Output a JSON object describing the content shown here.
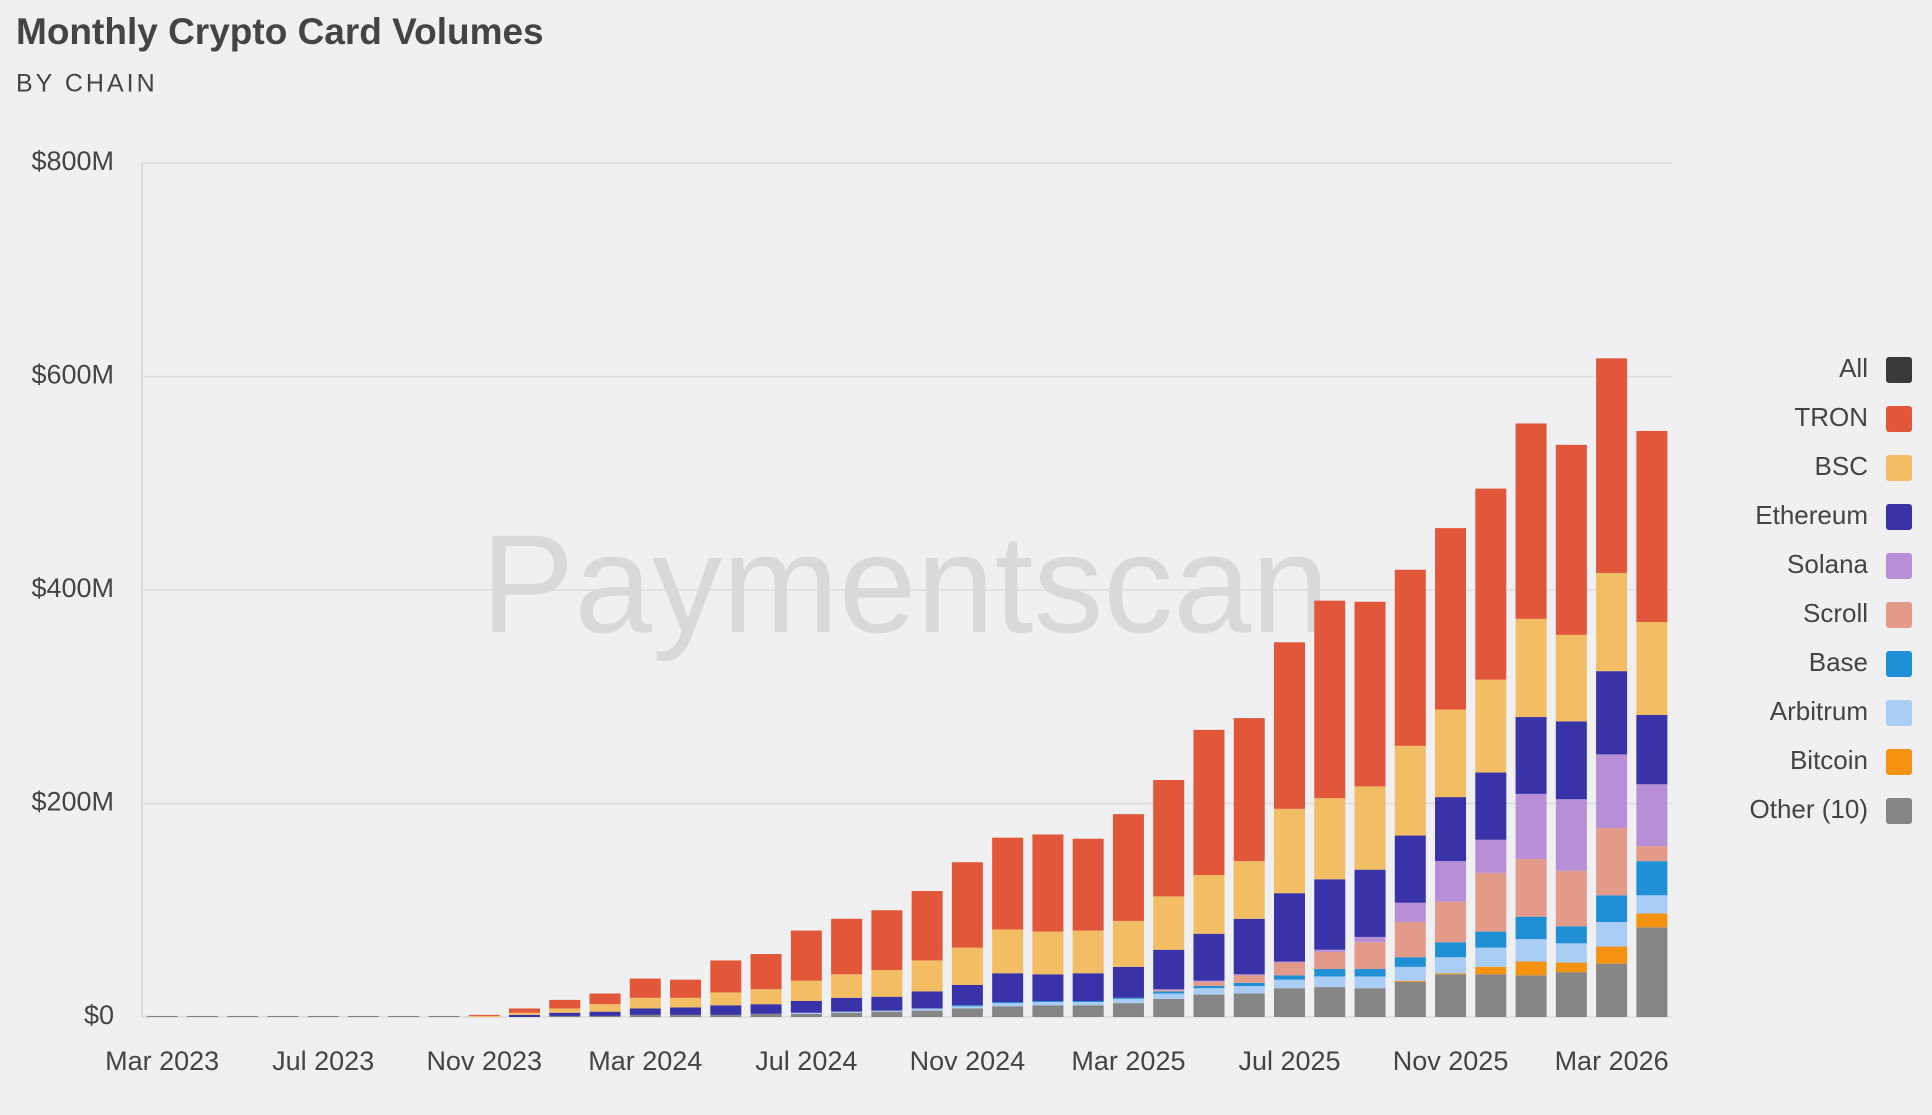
{
  "chart_data": {
    "type": "stacked_bar",
    "title": "Monthly Crypto Card Volumes",
    "subtitle": "BY CHAIN",
    "watermark": "Paymentscan",
    "categories": [
      "Mar 2023",
      null,
      null,
      null,
      "Jul 2023",
      null,
      null,
      null,
      "Nov 2023",
      null,
      null,
      null,
      "Mar 2024",
      null,
      null,
      null,
      "Jul 2024",
      null,
      null,
      null,
      "Nov 2024",
      null,
      null,
      null,
      "Mar 2025",
      null,
      null,
      null,
      "Jul 2025",
      null,
      null,
      null,
      "Nov 2025",
      null,
      null,
      null,
      "Mar 2026",
      null
    ],
    "legend_all": {
      "name": "All",
      "color": "#3a3a3a"
    },
    "series": [
      {
        "name": "TRON",
        "color": "#e2573a",
        "values": [
          0,
          0,
          0,
          0,
          0,
          0,
          0,
          0,
          1,
          4,
          8,
          10,
          18,
          17,
          30,
          33,
          47,
          52,
          56,
          65,
          80,
          86,
          91,
          86,
          100,
          109,
          136,
          134,
          156,
          185,
          173,
          165,
          170,
          179,
          183,
          178,
          201,
          179
        ]
      },
      {
        "name": "BSC",
        "color": "#f2bd63",
        "values": [
          0,
          0,
          0,
          0,
          0,
          0,
          0,
          0,
          1,
          2,
          4,
          7,
          10,
          9,
          12,
          14,
          19,
          22,
          25,
          29,
          35,
          41,
          40,
          40,
          43,
          50,
          55,
          54,
          79,
          76,
          78,
          84,
          82,
          87,
          92,
          81,
          92,
          87
        ]
      },
      {
        "name": "Ethereum",
        "color": "#3833a9",
        "values": [
          0,
          0,
          0,
          0,
          0,
          0,
          0,
          0,
          0,
          2,
          3,
          4,
          6,
          7,
          9,
          9,
          11,
          13,
          13,
          16,
          19,
          27,
          25,
          26,
          29,
          37,
          44,
          52,
          64,
          66,
          63,
          63,
          60,
          63,
          72,
          73,
          78,
          65
        ]
      },
      {
        "name": "Solana",
        "color": "#b88fd6",
        "values": [
          0,
          0,
          0,
          0,
          0,
          0,
          0,
          0,
          0,
          0,
          0,
          0,
          0,
          0,
          0,
          0,
          0,
          0,
          0,
          0,
          0,
          0,
          0,
          0,
          0,
          1,
          1,
          1,
          1,
          2,
          5,
          18,
          38,
          31,
          61,
          67,
          69,
          58
        ]
      },
      {
        "name": "Scroll",
        "color": "#e39a88",
        "values": [
          0,
          0,
          0,
          0,
          0,
          0,
          0,
          0,
          0,
          0,
          0,
          0,
          0,
          0,
          0,
          0,
          0,
          0,
          0,
          0,
          0,
          0,
          0,
          0,
          0,
          1,
          4,
          7,
          12,
          16,
          25,
          33,
          38,
          55,
          54,
          52,
          63,
          14
        ]
      },
      {
        "name": "Base",
        "color": "#1f8fd6",
        "values": [
          0,
          0,
          0,
          0,
          0,
          0,
          0,
          0,
          0,
          0,
          0,
          0,
          0,
          0,
          0,
          0,
          0,
          0,
          0,
          0,
          1,
          1,
          1,
          1,
          1,
          2,
          2,
          3,
          4,
          7,
          7,
          9,
          14,
          15,
          21,
          16,
          25,
          32
        ]
      },
      {
        "name": "Arbitrum",
        "color": "#a9cdf5",
        "values": [
          0,
          0,
          0,
          0,
          0,
          0,
          0,
          0,
          0,
          0,
          0,
          0,
          0,
          0,
          0,
          0,
          1,
          1,
          1,
          2,
          2,
          3,
          3,
          3,
          4,
          5,
          6,
          7,
          8,
          10,
          11,
          13,
          15,
          18,
          21,
          18,
          23,
          17
        ]
      },
      {
        "name": "Bitcoin",
        "color": "#f5920f",
        "values": [
          0,
          0,
          0,
          0,
          0,
          0,
          0,
          0,
          0,
          0,
          0,
          0,
          0,
          0,
          0,
          0,
          0,
          0,
          0,
          0,
          0,
          0,
          0,
          0,
          0,
          0,
          0,
          0,
          0,
          0,
          0,
          1,
          1,
          7,
          13,
          9,
          16,
          13
        ]
      },
      {
        "name": "Other (10)",
        "color": "#858585",
        "values": [
          1,
          1,
          1,
          1,
          1,
          1,
          1,
          1,
          0,
          0,
          1,
          1,
          2,
          2,
          2,
          3,
          3,
          4,
          5,
          6,
          8,
          10,
          11,
          11,
          13,
          17,
          21,
          22,
          27,
          28,
          27,
          33,
          40,
          40,
          39,
          42,
          50,
          84
        ]
      }
    ],
    "ylim": [
      0,
      800
    ],
    "yticks": [
      {
        "value": 0,
        "label": "$0"
      },
      {
        "value": 200,
        "label": "$200M"
      },
      {
        "value": 400,
        "label": "$400M"
      },
      {
        "value": 600,
        "label": "$600M"
      },
      {
        "value": 800,
        "label": "$800M"
      }
    ],
    "grid": true,
    "legend": "right"
  }
}
